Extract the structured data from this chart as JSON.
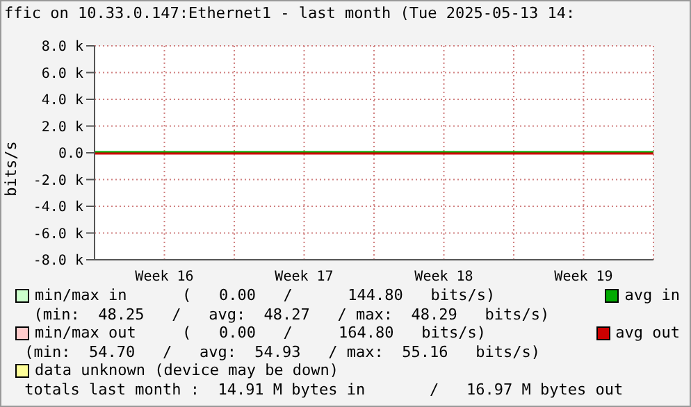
{
  "chart_data": {
    "type": "line",
    "title": "ffic on 10.33.0.147:Ethernet1 - last month (Tue 2025-05-13 14:",
    "ylabel": "bits/s",
    "categories": [
      null,
      "Week 16",
      null,
      "Week 17",
      null,
      "Week 18",
      null,
      "Week 19",
      null
    ],
    "series": [
      {
        "name": "avg in",
        "color": "#00aa00",
        "values": [
          50,
          50,
          50,
          50,
          50,
          50,
          50,
          50,
          50
        ]
      },
      {
        "name": "avg out",
        "color": "#cc0000",
        "values": [
          -50,
          -50,
          -50,
          -50,
          -50,
          -50,
          -50,
          -50,
          -50
        ]
      }
    ],
    "ylim": [
      -8000,
      8000
    ],
    "yticks": [
      {
        "value": -8000,
        "label": "-8.0 k"
      },
      {
        "value": -6000,
        "label": "-6.0 k"
      },
      {
        "value": -4000,
        "label": "-4.0 k"
      },
      {
        "value": -2000,
        "label": "-2.0 k"
      },
      {
        "value": 0,
        "label": "0.0"
      },
      {
        "value": 2000,
        "label": "2.0 k"
      },
      {
        "value": 4000,
        "label": "4.0 k"
      },
      {
        "value": 6000,
        "label": "6.0 k"
      },
      {
        "value": 8000,
        "label": "8.0 k"
      }
    ],
    "grid": true,
    "legend": "bottom",
    "marker": "none",
    "line_style": "solid",
    "annotations": [
      "min/max in      (   0.00   /      144.80   bits/s)",
      "  (min:  48.25   /   avg:  48.27   / max:  48.29   bits/s)",
      "min/max out     (   0.00   /     164.80   bits/s)",
      " (min:  54.70   /   avg:  54.93   / max:  55.16   bits/s)",
      "data unknown (device may be down)",
      " totals last month :  14.91 M bytes in       /   16.97 M bytes out"
    ]
  }
}
